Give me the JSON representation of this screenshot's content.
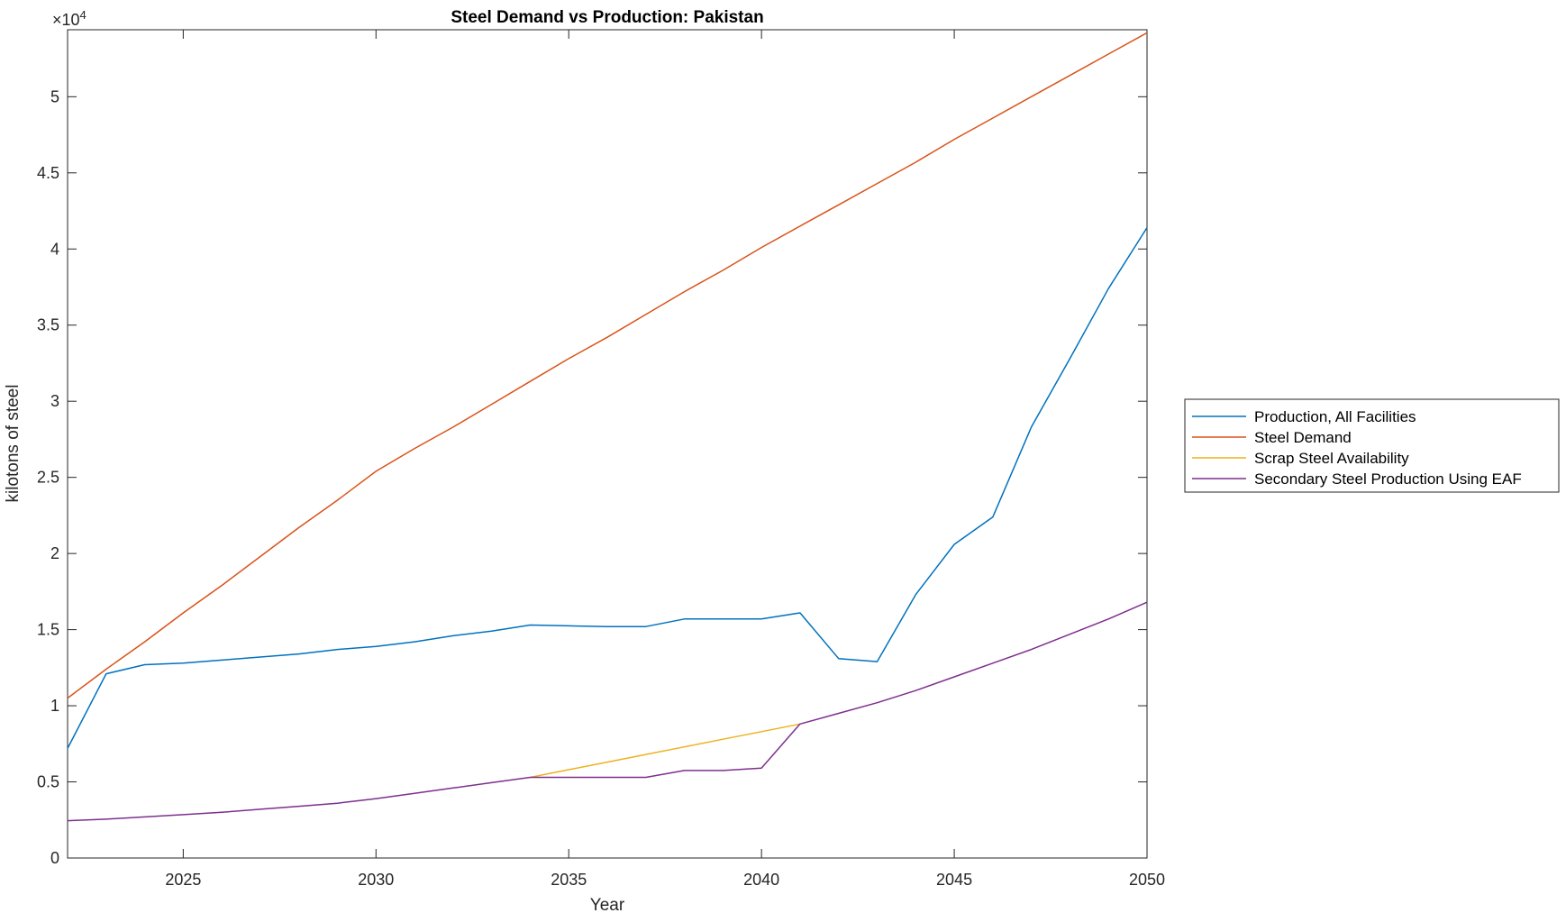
{
  "figure": {
    "background": "#ffffff"
  },
  "chart_data": {
    "type": "line",
    "title": "Steel Demand vs Production: Pakistan",
    "xlabel": "Year",
    "ylabel": "kilotons of steel",
    "y_axis_exponent": {
      "base": "×10",
      "exponent": "4"
    },
    "x_range": [
      2022,
      2050
    ],
    "y_range": [
      0,
      54400
    ],
    "x_ticks": [
      2025,
      2030,
      2035,
      2040,
      2045,
      2050
    ],
    "x_tick_labels": [
      "2025",
      "2030",
      "2035",
      "2040",
      "2045",
      "2050"
    ],
    "y_ticks": [
      0,
      5000,
      10000,
      15000,
      20000,
      25000,
      30000,
      35000,
      40000,
      45000,
      50000
    ],
    "y_tick_labels": [
      "0",
      "0.5",
      "1",
      "1.5",
      "2",
      "2.5",
      "3",
      "3.5",
      "4",
      "4.5",
      "5"
    ],
    "grid": false,
    "axis_color": "#262626",
    "legend": {
      "position": "right",
      "border": true
    },
    "series": [
      {
        "name": "Production, All Facilities",
        "color": "#0072BD",
        "x": [
          2022,
          2023,
          2024,
          2025,
          2026,
          2027,
          2028,
          2029,
          2030,
          2031,
          2032,
          2033,
          2034,
          2035,
          2036,
          2037,
          2038,
          2039,
          2040,
          2041,
          2042,
          2043,
          2044,
          2045,
          2046,
          2047,
          2048,
          2049,
          2050
        ],
        "values": [
          7200,
          12100,
          12700,
          12800,
          13000,
          13200,
          13400,
          13700,
          13900,
          14200,
          14600,
          14900,
          15300,
          15250,
          15200,
          15200,
          15700,
          15700,
          15700,
          16100,
          13100,
          12900,
          17300,
          20600,
          22400,
          28300,
          32800,
          37400,
          41400
        ]
      },
      {
        "name": "Steel Demand",
        "color": "#D95319",
        "x": [
          2022,
          2023,
          2024,
          2025,
          2026,
          2027,
          2028,
          2029,
          2030,
          2031,
          2032,
          2033,
          2034,
          2035,
          2036,
          2037,
          2038,
          2039,
          2040,
          2041,
          2042,
          2043,
          2044,
          2045,
          2046,
          2047,
          2048,
          2049,
          2050
        ],
        "values": [
          10500,
          12400,
          14200,
          16100,
          17900,
          19800,
          21700,
          23500,
          25400,
          26900,
          28300,
          29800,
          31300,
          32800,
          34200,
          35700,
          37200,
          38600,
          40100,
          41500,
          42900,
          44300,
          45700,
          47200,
          48600,
          50000,
          51400,
          52800,
          54200
        ]
      },
      {
        "name": "Scrap Steel Availability",
        "color": "#EDB120",
        "x": [
          2034,
          2035,
          2036,
          2037,
          2038,
          2039,
          2040,
          2041
        ],
        "values": [
          5300,
          5800,
          6300,
          6800,
          7300,
          7800,
          8300,
          8800
        ]
      },
      {
        "name": "Secondary Steel Production Using EAF",
        "color": "#7E2F8E",
        "x": [
          2022,
          2023,
          2024,
          2025,
          2026,
          2027,
          2028,
          2029,
          2030,
          2031,
          2032,
          2033,
          2034,
          2035,
          2036,
          2037,
          2038,
          2039,
          2040,
          2041,
          2042,
          2043,
          2044,
          2045,
          2046,
          2047,
          2048,
          2049,
          2050
        ],
        "values": [
          2450,
          2550,
          2700,
          2850,
          3000,
          3200,
          3400,
          3600,
          3900,
          4250,
          4600,
          4950,
          5300,
          5300,
          5300,
          5300,
          5750,
          5750,
          5900,
          8800,
          9500,
          10200,
          11000,
          11900,
          12800,
          13700,
          14700,
          15700,
          16800
        ]
      }
    ]
  }
}
